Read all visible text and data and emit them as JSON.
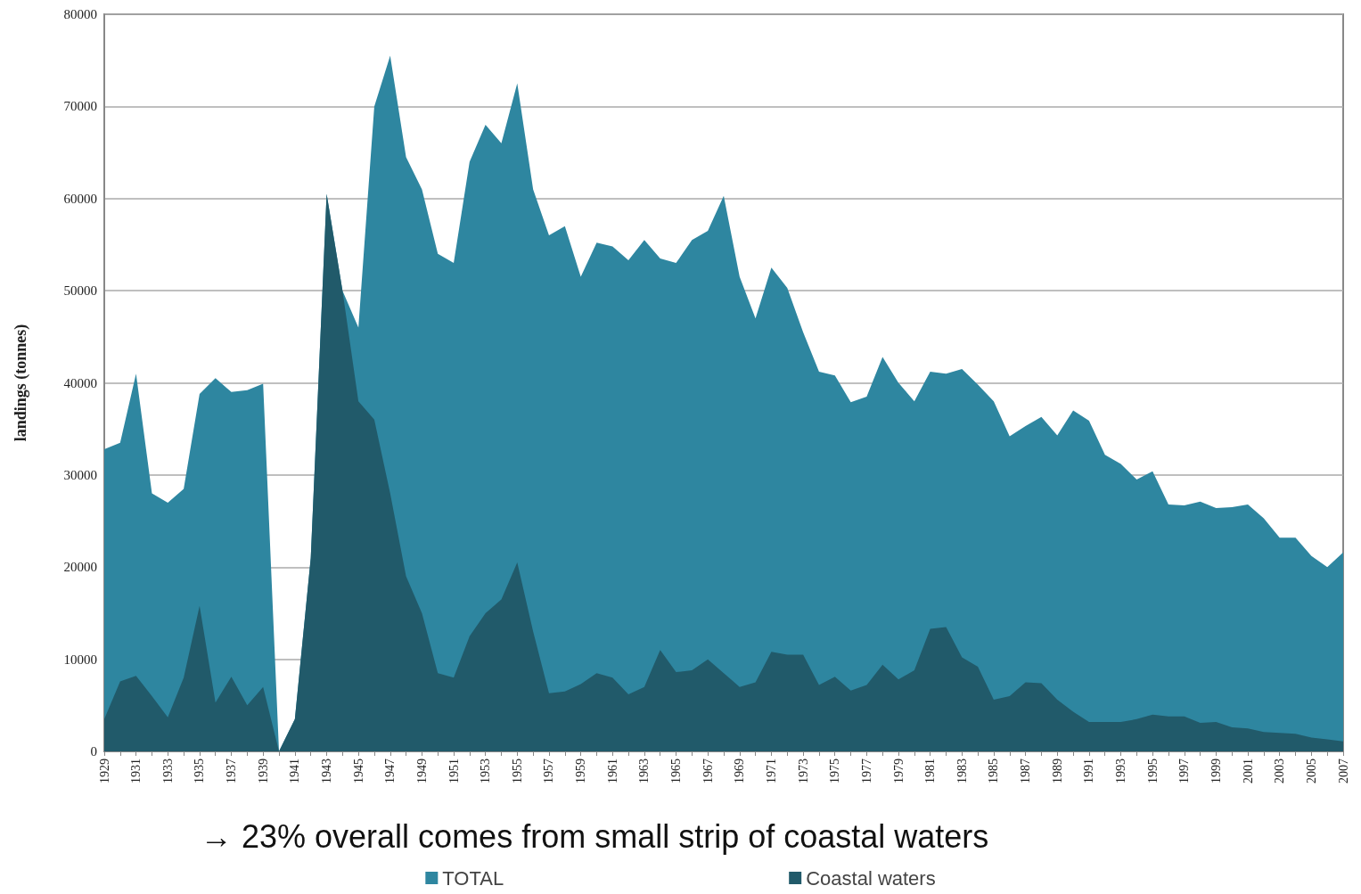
{
  "chart_data": {
    "type": "area",
    "ylabel": "landings (tonnes)",
    "annotations": [
      "→ 23% overall comes from small strip of coastal waters"
    ],
    "categories": [
      "1929",
      null,
      "1931",
      null,
      "1933",
      null,
      "1935",
      null,
      "1937",
      null,
      "1939",
      null,
      "1941",
      null,
      "1943",
      null,
      "1945",
      null,
      "1947",
      null,
      "1949",
      null,
      "1951",
      null,
      "1953",
      null,
      "1955",
      null,
      "1957",
      null,
      "1959",
      null,
      "1961",
      null,
      "1963",
      null,
      "1965",
      null,
      "1967",
      null,
      "1969",
      null,
      "1971",
      null,
      "1973",
      null,
      "1975",
      null,
      "1977",
      null,
      "1979",
      null,
      "1981",
      null,
      "1983",
      null,
      "1985",
      null,
      "1987",
      null,
      "1989",
      null,
      "1991",
      null,
      "1993",
      null,
      "1995",
      null,
      "1997",
      null,
      "1999",
      null,
      "2001",
      null,
      "2003",
      null,
      "2005",
      null,
      "2007"
    ],
    "series": [
      {
        "name": "TOTAL",
        "color": "#2e86a0",
        "values": [
          32800,
          33500,
          41000,
          28000,
          27000,
          28500,
          38800,
          40500,
          39000,
          39200,
          39900,
          0,
          3500,
          21000,
          60500,
          50000,
          46000,
          70000,
          75500,
          64500,
          61000,
          54000,
          53000,
          64000,
          68000,
          66000,
          72500,
          61000,
          56000,
          57000,
          51500,
          55200,
          54800,
          53300,
          55500,
          53500,
          53000,
          55500,
          56500,
          60300,
          51500,
          47000,
          52500,
          50300,
          45500,
          41200,
          40800,
          37900,
          38500,
          42800,
          40000,
          38000,
          41200,
          41000,
          41500,
          39800,
          38000,
          34200,
          35300,
          36300,
          34300,
          37000,
          35900,
          32200,
          31200,
          29500,
          30400,
          26800,
          26700,
          27100,
          26400,
          26500,
          26800,
          25300,
          23200,
          23200,
          21200,
          20000,
          21600
        ]
      },
      {
        "name": "Coastal waters",
        "color": "#215a6a",
        "values": [
          3500,
          7600,
          8200,
          6000,
          3700,
          8000,
          15800,
          5300,
          8100,
          5000,
          7000,
          0,
          3500,
          21000,
          60500,
          50000,
          38000,
          36000,
          28000,
          19000,
          15000,
          8500,
          8000,
          12500,
          15000,
          16500,
          20500,
          13000,
          6300,
          6500,
          7300,
          8500,
          8000,
          6200,
          7000,
          11000,
          8600,
          8800,
          10000,
          8500,
          7000,
          7500,
          10800,
          10500,
          10500,
          7200,
          8100,
          6600,
          7200,
          9400,
          7800,
          8800,
          13300,
          13500,
          10200,
          9200,
          5600,
          6000,
          7500,
          7400,
          5600,
          4300,
          3200,
          3200,
          3200,
          3500,
          4000,
          3800,
          3800,
          3100,
          3200,
          2600,
          2500,
          2100,
          2000,
          1900,
          1500,
          1300,
          1100
        ]
      }
    ],
    "ylim": [
      0,
      80000
    ],
    "yticks": [
      0,
      10000,
      20000,
      30000,
      40000,
      50000,
      60000,
      70000,
      80000
    ],
    "grid": "y",
    "legend": "bottom"
  }
}
